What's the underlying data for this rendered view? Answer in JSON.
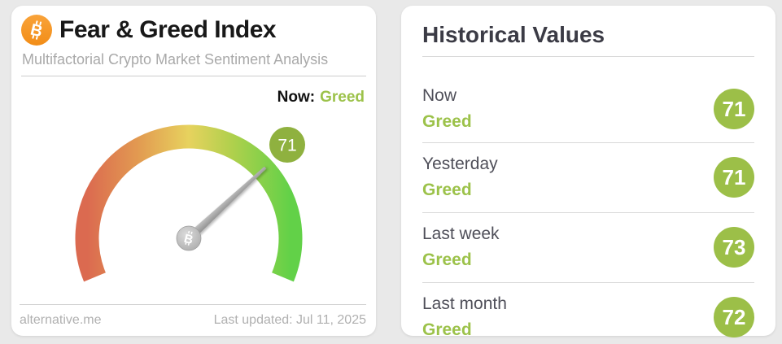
{
  "page": {
    "background_color": "#e9e9e9",
    "card_color": "#ffffff"
  },
  "main_card": {
    "icon": {
      "name": "bitcoin-icon",
      "glyph": "B",
      "color": "#f7931a"
    },
    "title": "Fear & Greed Index",
    "subtitle": "Multifactorial Crypto Market Sentiment Analysis",
    "now": {
      "label": "Now:",
      "value": "Greed",
      "value_color": "#9cc24a"
    },
    "gauge": {
      "value_label": "71",
      "needle_hub_glyph": "B",
      "badge_color": "#8fb13f",
      "needle_color": "#a5a5a5",
      "arc_colors": [
        "#db6a50",
        "#e29a51",
        "#e7d25e",
        "#aed04c",
        "#62d148"
      ]
    },
    "footer": {
      "source": "alternative.me",
      "last_updated": "Last updated: Jul 11, 2025"
    }
  },
  "history_card": {
    "title": "Historical Values",
    "badge_color": "#9cbf48",
    "sentiment_color": "#9cc24a",
    "rows": [
      {
        "label": "Now",
        "sentiment": "Greed",
        "value": "71"
      },
      {
        "label": "Yesterday",
        "sentiment": "Greed",
        "value": "71"
      },
      {
        "label": "Last week",
        "sentiment": "Greed",
        "value": "73"
      },
      {
        "label": "Last month",
        "sentiment": "Greed",
        "value": "72"
      }
    ]
  },
  "chart_data": {
    "type": "gauge",
    "title": "Fear & Greed Index",
    "subtitle": "Multifactorial Crypto Market Sentiment Analysis",
    "value": 71,
    "min": 0,
    "max": 100,
    "classification": "Greed",
    "sweep_deg": 225,
    "source": "alternative.me",
    "last_updated": "Jul 11, 2025",
    "scale": [
      {
        "stop": 0,
        "color": "#db6a50"
      },
      {
        "stop": 25,
        "color": "#e29a51"
      },
      {
        "stop": 50,
        "color": "#e7d25e"
      },
      {
        "stop": 75,
        "color": "#aed04c"
      },
      {
        "stop": 100,
        "color": "#62d148"
      }
    ],
    "history": [
      {
        "label": "Now",
        "classification": "Greed",
        "value": 71
      },
      {
        "label": "Yesterday",
        "classification": "Greed",
        "value": 71
      },
      {
        "label": "Last week",
        "classification": "Greed",
        "value": 73
      },
      {
        "label": "Last month",
        "classification": "Greed",
        "value": 72
      }
    ]
  }
}
